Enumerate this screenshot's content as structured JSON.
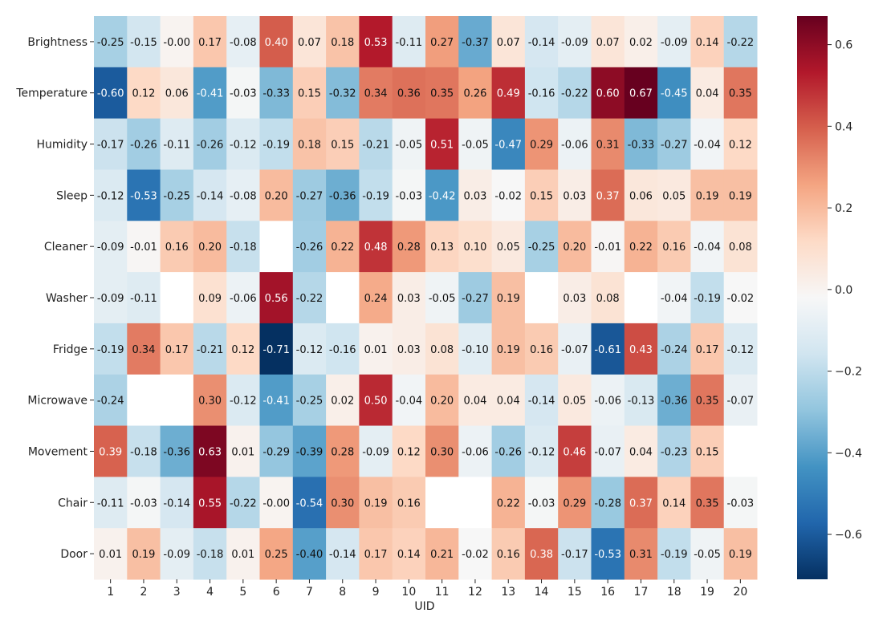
{
  "chart_data": {
    "type": "heatmap",
    "title": "",
    "xlabel": "UID",
    "ylabel": "",
    "rows": [
      "Brightness",
      "Temperature",
      "Humidity",
      "Sleep",
      "Cleaner",
      "Washer",
      "Fridge",
      "Microwave",
      "Movement",
      "Chair",
      "Door"
    ],
    "cols": [
      "1",
      "2",
      "3",
      "4",
      "5",
      "6",
      "7",
      "8",
      "9",
      "10",
      "11",
      "12",
      "13",
      "14",
      "15",
      "16",
      "17",
      "18",
      "19",
      "20"
    ],
    "values": [
      [
        -0.25,
        -0.15,
        -0.0,
        0.17,
        -0.08,
        0.4,
        0.07,
        0.18,
        0.53,
        -0.11,
        0.27,
        -0.37,
        0.07,
        -0.14,
        -0.09,
        0.07,
        0.02,
        -0.09,
        0.14,
        -0.22
      ],
      [
        -0.6,
        0.12,
        0.06,
        -0.41,
        -0.03,
        -0.33,
        0.15,
        -0.32,
        0.34,
        0.36,
        0.35,
        0.26,
        0.49,
        -0.16,
        -0.22,
        0.6,
        0.67,
        -0.45,
        0.04,
        0.35
      ],
      [
        -0.17,
        -0.26,
        -0.11,
        -0.26,
        -0.12,
        -0.19,
        0.18,
        0.15,
        -0.21,
        -0.05,
        0.51,
        -0.05,
        -0.47,
        0.29,
        -0.06,
        0.31,
        -0.33,
        -0.27,
        -0.04,
        0.12
      ],
      [
        -0.12,
        -0.53,
        -0.25,
        -0.14,
        -0.08,
        0.2,
        -0.27,
        -0.36,
        -0.19,
        -0.03,
        -0.42,
        0.03,
        -0.02,
        0.15,
        0.03,
        0.37,
        0.06,
        0.05,
        0.19,
        0.19
      ],
      [
        -0.09,
        -0.01,
        0.16,
        0.2,
        -0.18,
        null,
        -0.26,
        0.22,
        0.48,
        0.28,
        0.13,
        0.1,
        0.05,
        -0.25,
        0.2,
        -0.01,
        0.22,
        0.16,
        -0.04,
        0.08
      ],
      [
        -0.09,
        -0.11,
        null,
        0.09,
        -0.06,
        0.56,
        -0.22,
        null,
        0.24,
        0.03,
        -0.05,
        -0.27,
        0.19,
        null,
        0.03,
        0.08,
        null,
        -0.04,
        -0.19,
        -0.02
      ],
      [
        -0.19,
        0.34,
        0.17,
        -0.21,
        0.12,
        -0.71,
        -0.12,
        -0.16,
        0.01,
        0.03,
        0.08,
        -0.1,
        0.19,
        0.16,
        -0.07,
        -0.61,
        0.43,
        -0.24,
        0.17,
        -0.12
      ],
      [
        -0.24,
        null,
        null,
        0.3,
        -0.12,
        -0.41,
        -0.25,
        0.02,
        0.5,
        -0.04,
        0.2,
        0.04,
        0.04,
        -0.14,
        0.05,
        -0.06,
        -0.13,
        -0.36,
        0.35,
        -0.07
      ],
      [
        0.39,
        -0.18,
        -0.36,
        0.63,
        0.01,
        -0.29,
        -0.39,
        0.28,
        -0.09,
        0.12,
        0.3,
        -0.06,
        -0.26,
        -0.12,
        0.46,
        -0.07,
        0.04,
        -0.23,
        0.15,
        null
      ],
      [
        -0.11,
        -0.03,
        -0.14,
        0.55,
        -0.22,
        -0.0,
        -0.54,
        0.3,
        0.19,
        0.16,
        null,
        null,
        0.22,
        -0.03,
        0.29,
        -0.28,
        0.37,
        0.14,
        0.35,
        -0.03
      ],
      [
        0.01,
        0.19,
        -0.09,
        -0.18,
        0.01,
        0.25,
        -0.4,
        -0.14,
        0.17,
        0.14,
        0.21,
        -0.02,
        0.16,
        0.38,
        -0.17,
        -0.53,
        0.31,
        -0.19,
        -0.05,
        0.19
      ]
    ],
    "labels": [
      [
        "-0.25",
        "-0.15",
        "-0.00",
        "0.17",
        "-0.08",
        "0.40",
        "0.07",
        "0.18",
        "0.53",
        "-0.11",
        "0.27",
        "-0.37",
        "0.07",
        "-0.14",
        "-0.09",
        "0.07",
        "0.02",
        "-0.09",
        "0.14",
        "-0.22"
      ],
      [
        "-0.60",
        "0.12",
        "0.06",
        "-0.41",
        "-0.03",
        "-0.33",
        "0.15",
        "-0.32",
        "0.34",
        "0.36",
        "0.35",
        "0.26",
        "0.49",
        "-0.16",
        "-0.22",
        "0.60",
        "0.67",
        "-0.45",
        "0.04",
        "0.35"
      ],
      [
        "-0.17",
        "-0.26",
        "-0.11",
        "-0.26",
        "-0.12",
        "-0.19",
        "0.18",
        "0.15",
        "-0.21",
        "-0.05",
        "0.51",
        "-0.05",
        "-0.47",
        "0.29",
        "-0.06",
        "0.31",
        "-0.33",
        "-0.27",
        "-0.04",
        "0.12"
      ],
      [
        "-0.12",
        "-0.53",
        "-0.25",
        "-0.14",
        "-0.08",
        "0.20",
        "-0.27",
        "-0.36",
        "-0.19",
        "-0.03",
        "-0.42",
        "0.03",
        "-0.02",
        "0.15",
        "0.03",
        "0.37",
        "0.06",
        "0.05",
        "0.19",
        "0.19"
      ],
      [
        "-0.09",
        "-0.01",
        "0.16",
        "0.20",
        "-0.18",
        "",
        "-0.26",
        "0.22",
        "0.48",
        "0.28",
        "0.13",
        "0.10",
        "0.05",
        "-0.25",
        "0.20",
        "-0.01",
        "0.22",
        "0.16",
        "-0.04",
        "0.08"
      ],
      [
        "-0.09",
        "-0.11",
        "",
        "0.09",
        "-0.06",
        "0.56",
        "-0.22",
        "",
        "0.24",
        "0.03",
        "-0.05",
        "-0.27",
        "0.19",
        "",
        "0.03",
        "0.08",
        "",
        "-0.04",
        "-0.19",
        "-0.02"
      ],
      [
        "-0.19",
        "0.34",
        "0.17",
        "-0.21",
        "0.12",
        "-0.71",
        "-0.12",
        "-0.16",
        "0.01",
        "0.03",
        "0.08",
        "-0.10",
        "0.19",
        "0.16",
        "-0.07",
        "-0.61",
        "0.43",
        "-0.24",
        "0.17",
        "-0.12"
      ],
      [
        "-0.24",
        "",
        "",
        "0.30",
        "-0.12",
        "-0.41",
        "-0.25",
        "0.02",
        "0.50",
        "-0.04",
        "0.20",
        "0.04",
        "0.04",
        "-0.14",
        "0.05",
        "-0.06",
        "-0.13",
        "-0.36",
        "0.35",
        "-0.07"
      ],
      [
        "0.39",
        "-0.18",
        "-0.36",
        "0.63",
        "0.01",
        "-0.29",
        "-0.39",
        "0.28",
        "-0.09",
        "0.12",
        "0.30",
        "-0.06",
        "-0.26",
        "-0.12",
        "0.46",
        "-0.07",
        "0.04",
        "-0.23",
        "0.15",
        ""
      ],
      [
        "-0.11",
        "-0.03",
        "-0.14",
        "0.55",
        "-0.22",
        "-0.00",
        "-0.54",
        "0.30",
        "0.19",
        "0.16",
        "",
        "",
        "0.22",
        "-0.03",
        "0.29",
        "-0.28",
        "0.37",
        "0.14",
        "0.35",
        "-0.03"
      ],
      [
        "0.01",
        "0.19",
        "-0.09",
        "-0.18",
        "0.01",
        "0.25",
        "-0.40",
        "-0.14",
        "0.17",
        "0.14",
        "0.21",
        "-0.02",
        "0.16",
        "0.38",
        "-0.17",
        "-0.53",
        "0.31",
        "-0.19",
        "-0.05",
        "0.19"
      ]
    ],
    "vmin": -0.71,
    "vmax": 0.67,
    "colormap": "RdBu_r",
    "colorbar": {
      "ticks": [
        0.6,
        0.4,
        0.2,
        0.0,
        -0.2,
        -0.4,
        -0.6
      ],
      "tick_labels": [
        "0.6",
        "0.4",
        "0.2",
        "0.0",
        "−0.2",
        "−0.4",
        "−0.6"
      ]
    },
    "grid": false,
    "legend": "colorbar-right"
  }
}
